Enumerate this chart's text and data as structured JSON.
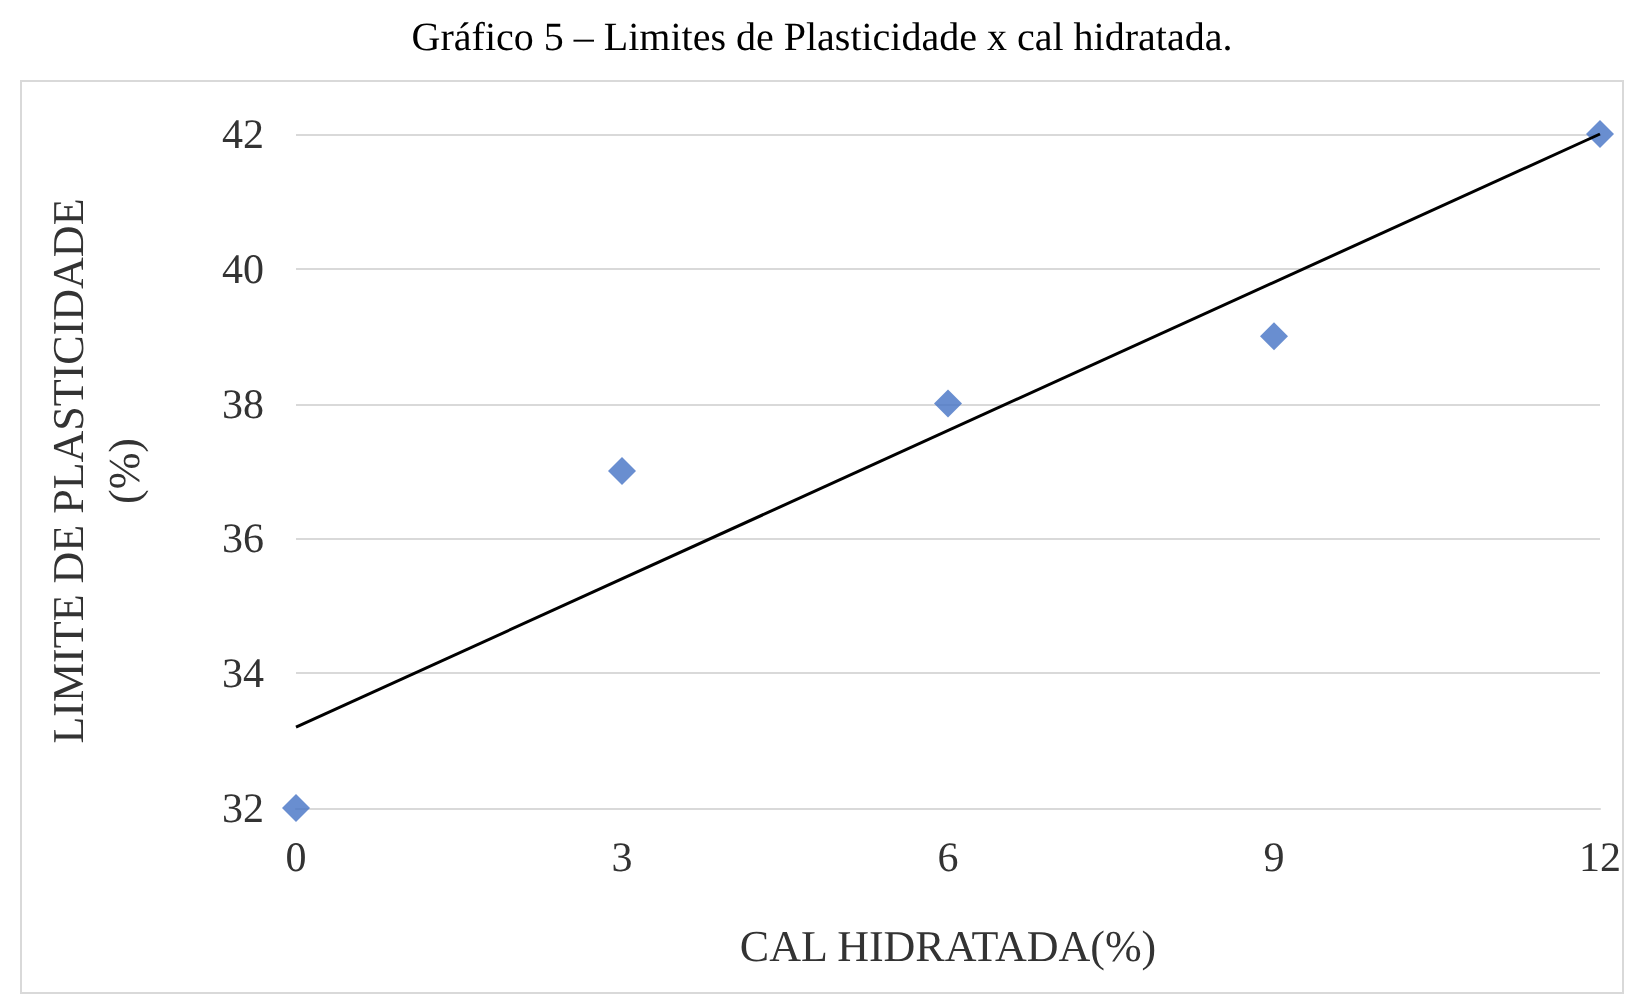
{
  "chart_data": {
    "type": "scatter",
    "title": "Gráfico 5 – Limites de Plasticidade x cal hidratada.",
    "xlabel": "CAL HIDRATADA(%)",
    "ylabel": "LIMITE DE PLASTICIDADE\n(%)",
    "x": [
      0,
      3,
      6,
      9,
      12
    ],
    "series": [
      {
        "color": "#4472c4",
        "marker": "diamond",
        "values": [
          32,
          37,
          38,
          39,
          42
        ]
      },
      {
        "type": "line",
        "color": "#000000",
        "marker": "none",
        "x": [
          0,
          12
        ],
        "values": [
          33.2,
          42.0
        ]
      }
    ],
    "xlim": [
      0,
      12
    ],
    "xticks": [
      0,
      3,
      6,
      9,
      12
    ],
    "ylim": [
      32,
      42
    ],
    "yticks": [
      32,
      34,
      36,
      38,
      40,
      42
    ],
    "grid": "y"
  }
}
